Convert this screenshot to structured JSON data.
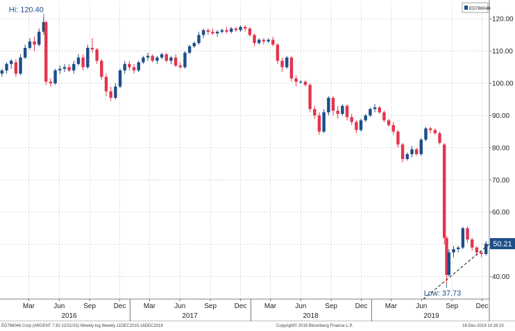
{
  "chart_data": {
    "type": "candlestick",
    "ticker_badge": "ED786046",
    "y_ticks": [
      40,
      50,
      60,
      70,
      80,
      90,
      100,
      110,
      120
    ],
    "y_tick_labels": [
      "40.00",
      "50.00",
      "60.00",
      "70.00",
      "80.00",
      "90.00",
      "100.00",
      "110.00",
      "120.00"
    ],
    "ylim": [
      33,
      125
    ],
    "grid": true,
    "colors": {
      "up": "#1d4e89",
      "down": "#e3344d",
      "last_badge": "#1d4e89",
      "annotation": "#1d4e89"
    },
    "month_ticks": [
      {
        "label": "Mar",
        "date": "2016-03-01"
      },
      {
        "label": "Jun",
        "date": "2016-06-01"
      },
      {
        "label": "Sep",
        "date": "2016-09-01"
      },
      {
        "label": "Dec",
        "date": "2016-12-01"
      },
      {
        "label": "Mar",
        "date": "2017-03-01"
      },
      {
        "label": "Jun",
        "date": "2017-06-01"
      },
      {
        "label": "Sep",
        "date": "2017-09-01"
      },
      {
        "label": "Dec",
        "date": "2017-12-01"
      },
      {
        "label": "Mar",
        "date": "2018-03-01"
      },
      {
        "label": "Jun",
        "date": "2018-06-01"
      },
      {
        "label": "Sep",
        "date": "2018-09-01"
      },
      {
        "label": "Dec",
        "date": "2018-12-01"
      },
      {
        "label": "Mar",
        "date": "2019-03-01"
      },
      {
        "label": "Jun",
        "date": "2019-06-01"
      },
      {
        "label": "Sep",
        "date": "2019-09-01"
      },
      {
        "label": "Dec",
        "date": "2019-12-01"
      }
    ],
    "year_labels": [
      {
        "label": "2016",
        "date": "2016-07-01"
      },
      {
        "label": "2017",
        "date": "2017-07-01"
      },
      {
        "label": "2018",
        "date": "2018-07-01"
      },
      {
        "label": "2019",
        "date": "2019-07-01"
      }
    ],
    "year_dividers": [
      "2017-01-01",
      "2018-01-01",
      "2019-01-01"
    ],
    "hi_annotation": {
      "label": "Hi: 120.40",
      "date": "2016-04-15",
      "value": 120.4
    },
    "low_annotation": {
      "label": "Low: 37.73",
      "date": "2019-08-16",
      "value": 37.73
    },
    "last_value": {
      "label": "50.21",
      "value": 50.21
    },
    "trend_line": {
      "start": {
        "date": "2019-06-07",
        "value": 33.0
      },
      "end": {
        "date": "2019-12-13",
        "value": 50.21
      }
    },
    "candles": [
      {
        "d": "2015-12-11",
        "o": 103.0,
        "h": 104.5,
        "l": 102.0,
        "c": 104.0
      },
      {
        "d": "2015-12-25",
        "o": 104.0,
        "h": 106.5,
        "l": 103.0,
        "c": 106.0
      },
      {
        "d": "2016-01-08",
        "o": 106.0,
        "h": 107.5,
        "l": 104.5,
        "c": 107.0
      },
      {
        "d": "2016-01-22",
        "o": 106.5,
        "h": 107.5,
        "l": 102.0,
        "c": 103.0
      },
      {
        "d": "2016-02-05",
        "o": 103.0,
        "h": 109.0,
        "l": 102.5,
        "c": 108.0
      },
      {
        "d": "2016-02-19",
        "o": 108.0,
        "h": 112.0,
        "l": 107.5,
        "c": 111.0
      },
      {
        "d": "2016-03-04",
        "o": 111.0,
        "h": 114.0,
        "l": 110.5,
        "c": 113.0
      },
      {
        "d": "2016-03-18",
        "o": 113.0,
        "h": 114.5,
        "l": 110.0,
        "c": 112.0
      },
      {
        "d": "2016-04-01",
        "o": 112.0,
        "h": 117.0,
        "l": 111.5,
        "c": 116.0
      },
      {
        "d": "2016-04-15",
        "o": 116.0,
        "h": 120.4,
        "l": 115.0,
        "c": 119.0
      },
      {
        "d": "2016-04-22",
        "o": 119.0,
        "h": 119.5,
        "l": 99.5,
        "c": 100.5
      },
      {
        "d": "2016-05-06",
        "o": 100.5,
        "h": 101.5,
        "l": 99.0,
        "c": 100.0
      },
      {
        "d": "2016-05-20",
        "o": 100.0,
        "h": 104.5,
        "l": 99.5,
        "c": 104.0
      },
      {
        "d": "2016-06-03",
        "o": 104.0,
        "h": 105.5,
        "l": 103.0,
        "c": 104.5
      },
      {
        "d": "2016-06-17",
        "o": 104.5,
        "h": 106.0,
        "l": 103.5,
        "c": 105.0
      },
      {
        "d": "2016-07-01",
        "o": 105.0,
        "h": 106.0,
        "l": 103.5,
        "c": 104.0
      },
      {
        "d": "2016-07-15",
        "o": 104.0,
        "h": 107.0,
        "l": 103.0,
        "c": 106.0
      },
      {
        "d": "2016-07-29",
        "o": 106.0,
        "h": 109.0,
        "l": 105.5,
        "c": 108.0
      },
      {
        "d": "2016-08-12",
        "o": 108.0,
        "h": 109.0,
        "l": 104.0,
        "c": 105.0
      },
      {
        "d": "2016-08-26",
        "o": 105.0,
        "h": 112.0,
        "l": 104.5,
        "c": 111.0
      },
      {
        "d": "2016-09-09",
        "o": 111.0,
        "h": 114.0,
        "l": 109.5,
        "c": 110.5
      },
      {
        "d": "2016-09-23",
        "o": 110.5,
        "h": 111.0,
        "l": 106.0,
        "c": 107.0
      },
      {
        "d": "2016-10-07",
        "o": 107.0,
        "h": 107.5,
        "l": 101.0,
        "c": 102.0
      },
      {
        "d": "2016-10-21",
        "o": 102.0,
        "h": 103.0,
        "l": 96.0,
        "c": 97.5
      },
      {
        "d": "2016-11-04",
        "o": 97.5,
        "h": 99.0,
        "l": 94.5,
        "c": 95.5
      },
      {
        "d": "2016-11-18",
        "o": 95.5,
        "h": 100.0,
        "l": 95.0,
        "c": 99.0
      },
      {
        "d": "2016-12-02",
        "o": 99.0,
        "h": 104.5,
        "l": 98.5,
        "c": 104.0
      },
      {
        "d": "2016-12-16",
        "o": 104.0,
        "h": 107.0,
        "l": 103.0,
        "c": 106.0
      },
      {
        "d": "2016-12-30",
        "o": 106.0,
        "h": 107.0,
        "l": 104.0,
        "c": 105.0
      },
      {
        "d": "2017-01-13",
        "o": 105.0,
        "h": 106.0,
        "l": 103.0,
        "c": 104.0
      },
      {
        "d": "2017-01-27",
        "o": 104.0,
        "h": 107.0,
        "l": 103.5,
        "c": 106.5
      },
      {
        "d": "2017-02-10",
        "o": 106.5,
        "h": 108.5,
        "l": 106.0,
        "c": 108.0
      },
      {
        "d": "2017-02-24",
        "o": 108.0,
        "h": 109.5,
        "l": 107.0,
        "c": 108.5
      },
      {
        "d": "2017-03-10",
        "o": 108.5,
        "h": 109.0,
        "l": 106.5,
        "c": 107.0
      },
      {
        "d": "2017-03-24",
        "o": 107.0,
        "h": 108.5,
        "l": 106.0,
        "c": 108.0
      },
      {
        "d": "2017-04-07",
        "o": 108.0,
        "h": 109.5,
        "l": 107.5,
        "c": 109.0
      },
      {
        "d": "2017-04-21",
        "o": 109.0,
        "h": 109.5,
        "l": 106.5,
        "c": 107.0
      },
      {
        "d": "2017-05-05",
        "o": 107.0,
        "h": 108.5,
        "l": 106.0,
        "c": 108.0
      },
      {
        "d": "2017-05-19",
        "o": 108.0,
        "h": 109.0,
        "l": 105.0,
        "c": 105.5
      },
      {
        "d": "2017-06-02",
        "o": 105.5,
        "h": 106.5,
        "l": 104.5,
        "c": 105.0
      },
      {
        "d": "2017-06-16",
        "o": 105.0,
        "h": 110.0,
        "l": 104.5,
        "c": 109.5
      },
      {
        "d": "2017-06-30",
        "o": 109.5,
        "h": 112.0,
        "l": 109.0,
        "c": 111.5
      },
      {
        "d": "2017-07-14",
        "o": 111.5,
        "h": 113.0,
        "l": 111.0,
        "c": 112.5
      },
      {
        "d": "2017-07-28",
        "o": 112.5,
        "h": 116.0,
        "l": 112.0,
        "c": 115.0
      },
      {
        "d": "2017-08-11",
        "o": 115.0,
        "h": 117.0,
        "l": 114.0,
        "c": 116.5
      },
      {
        "d": "2017-08-25",
        "o": 116.5,
        "h": 117.0,
        "l": 115.0,
        "c": 116.0
      },
      {
        "d": "2017-09-08",
        "o": 116.0,
        "h": 117.0,
        "l": 115.0,
        "c": 115.5
      },
      {
        "d": "2017-09-22",
        "o": 115.5,
        "h": 116.5,
        "l": 114.5,
        "c": 116.0
      },
      {
        "d": "2017-10-06",
        "o": 116.0,
        "h": 117.0,
        "l": 115.5,
        "c": 116.5
      },
      {
        "d": "2017-10-20",
        "o": 116.5,
        "h": 117.5,
        "l": 115.5,
        "c": 116.0
      },
      {
        "d": "2017-11-03",
        "o": 116.0,
        "h": 117.5,
        "l": 115.5,
        "c": 117.0
      },
      {
        "d": "2017-11-17",
        "o": 117.0,
        "h": 117.5,
        "l": 116.0,
        "c": 116.5
      },
      {
        "d": "2017-12-01",
        "o": 116.5,
        "h": 118.0,
        "l": 116.0,
        "c": 117.5
      },
      {
        "d": "2017-12-15",
        "o": 117.5,
        "h": 118.0,
        "l": 116.0,
        "c": 117.0
      },
      {
        "d": "2017-12-29",
        "o": 117.0,
        "h": 117.5,
        "l": 114.5,
        "c": 115.0
      },
      {
        "d": "2018-01-12",
        "o": 115.0,
        "h": 115.5,
        "l": 111.5,
        "c": 112.5
      },
      {
        "d": "2018-01-26",
        "o": 112.5,
        "h": 114.0,
        "l": 112.0,
        "c": 113.5
      },
      {
        "d": "2018-02-09",
        "o": 113.5,
        "h": 114.0,
        "l": 112.0,
        "c": 113.0
      },
      {
        "d": "2018-02-23",
        "o": 113.0,
        "h": 114.0,
        "l": 112.5,
        "c": 113.5
      },
      {
        "d": "2018-03-09",
        "o": 113.5,
        "h": 114.5,
        "l": 111.5,
        "c": 112.0
      },
      {
        "d": "2018-03-23",
        "o": 112.0,
        "h": 112.5,
        "l": 106.0,
        "c": 107.0
      },
      {
        "d": "2018-04-06",
        "o": 107.0,
        "h": 108.0,
        "l": 103.5,
        "c": 105.0
      },
      {
        "d": "2018-04-20",
        "o": 105.0,
        "h": 108.5,
        "l": 104.5,
        "c": 108.0
      },
      {
        "d": "2018-05-04",
        "o": 108.0,
        "h": 108.5,
        "l": 100.5,
        "c": 101.5
      },
      {
        "d": "2018-05-18",
        "o": 101.5,
        "h": 102.5,
        "l": 99.0,
        "c": 100.5
      },
      {
        "d": "2018-06-01",
        "o": 100.5,
        "h": 101.0,
        "l": 100.0,
        "c": 100.5
      },
      {
        "d": "2018-06-15",
        "o": 100.5,
        "h": 101.0,
        "l": 99.0,
        "c": 99.5
      },
      {
        "d": "2018-06-29",
        "o": 99.5,
        "h": 100.0,
        "l": 91.0,
        "c": 92.0
      },
      {
        "d": "2018-07-13",
        "o": 92.0,
        "h": 93.0,
        "l": 89.0,
        "c": 90.0
      },
      {
        "d": "2018-07-27",
        "o": 90.0,
        "h": 91.0,
        "l": 84.0,
        "c": 85.0
      },
      {
        "d": "2018-08-10",
        "o": 85.0,
        "h": 92.0,
        "l": 84.5,
        "c": 91.0
      },
      {
        "d": "2018-08-24",
        "o": 91.0,
        "h": 96.0,
        "l": 90.0,
        "c": 95.5
      },
      {
        "d": "2018-09-07",
        "o": 95.5,
        "h": 96.0,
        "l": 90.0,
        "c": 91.5
      },
      {
        "d": "2018-09-21",
        "o": 91.5,
        "h": 93.0,
        "l": 89.0,
        "c": 90.5
      },
      {
        "d": "2018-10-05",
        "o": 90.5,
        "h": 93.5,
        "l": 90.0,
        "c": 93.0
      },
      {
        "d": "2018-10-19",
        "o": 93.0,
        "h": 93.5,
        "l": 88.5,
        "c": 89.5
      },
      {
        "d": "2018-11-02",
        "o": 89.5,
        "h": 90.5,
        "l": 87.0,
        "c": 88.0
      },
      {
        "d": "2018-11-16",
        "o": 88.0,
        "h": 88.5,
        "l": 84.5,
        "c": 85.5
      },
      {
        "d": "2018-11-30",
        "o": 85.5,
        "h": 89.0,
        "l": 85.0,
        "c": 88.5
      },
      {
        "d": "2018-12-14",
        "o": 88.5,
        "h": 90.5,
        "l": 88.0,
        "c": 90.0
      },
      {
        "d": "2018-12-28",
        "o": 90.0,
        "h": 92.5,
        "l": 89.5,
        "c": 92.0
      },
      {
        "d": "2019-01-11",
        "o": 92.0,
        "h": 93.5,
        "l": 91.0,
        "c": 92.5
      },
      {
        "d": "2019-01-25",
        "o": 92.5,
        "h": 93.0,
        "l": 90.5,
        "c": 91.0
      },
      {
        "d": "2019-02-08",
        "o": 91.0,
        "h": 91.5,
        "l": 88.0,
        "c": 88.5
      },
      {
        "d": "2019-02-22",
        "o": 88.5,
        "h": 89.0,
        "l": 86.5,
        "c": 87.0
      },
      {
        "d": "2019-03-08",
        "o": 87.0,
        "h": 88.0,
        "l": 84.0,
        "c": 85.0
      },
      {
        "d": "2019-03-22",
        "o": 85.0,
        "h": 85.5,
        "l": 80.0,
        "c": 81.0
      },
      {
        "d": "2019-04-05",
        "o": 81.0,
        "h": 81.5,
        "l": 75.5,
        "c": 76.5
      },
      {
        "d": "2019-04-19",
        "o": 76.5,
        "h": 78.5,
        "l": 76.0,
        "c": 78.0
      },
      {
        "d": "2019-05-03",
        "o": 78.0,
        "h": 80.5,
        "l": 77.0,
        "c": 79.5
      },
      {
        "d": "2019-05-17",
        "o": 79.5,
        "h": 80.0,
        "l": 77.5,
        "c": 78.0
      },
      {
        "d": "2019-05-31",
        "o": 78.0,
        "h": 83.0,
        "l": 77.5,
        "c": 82.5
      },
      {
        "d": "2019-06-14",
        "o": 82.5,
        "h": 86.5,
        "l": 82.0,
        "c": 86.0
      },
      {
        "d": "2019-06-28",
        "o": 86.0,
        "h": 86.5,
        "l": 84.5,
        "c": 85.5
      },
      {
        "d": "2019-07-12",
        "o": 85.5,
        "h": 86.0,
        "l": 84.0,
        "c": 84.5
      },
      {
        "d": "2019-07-26",
        "o": 84.5,
        "h": 85.0,
        "l": 81.0,
        "c": 81.5
      },
      {
        "d": "2019-08-09",
        "o": 81.0,
        "h": 81.5,
        "l": 50.0,
        "c": 52.0
      },
      {
        "d": "2019-08-16",
        "o": 52.0,
        "h": 52.5,
        "l": 37.73,
        "c": 40.5
      },
      {
        "d": "2019-08-23",
        "o": 40.5,
        "h": 48.5,
        "l": 40.0,
        "c": 47.5
      },
      {
        "d": "2019-09-06",
        "o": 47.5,
        "h": 49.5,
        "l": 46.0,
        "c": 48.5
      },
      {
        "d": "2019-09-20",
        "o": 48.5,
        "h": 49.5,
        "l": 47.5,
        "c": 49.0
      },
      {
        "d": "2019-10-04",
        "o": 49.0,
        "h": 55.5,
        "l": 48.5,
        "c": 55.0
      },
      {
        "d": "2019-10-18",
        "o": 55.0,
        "h": 55.5,
        "l": 50.5,
        "c": 51.5
      },
      {
        "d": "2019-11-01",
        "o": 51.5,
        "h": 52.0,
        "l": 48.0,
        "c": 49.0
      },
      {
        "d": "2019-11-15",
        "o": 49.0,
        "h": 49.5,
        "l": 46.5,
        "c": 47.5
      },
      {
        "d": "2019-11-29",
        "o": 47.5,
        "h": 48.0,
        "l": 46.0,
        "c": 47.0
      },
      {
        "d": "2019-12-13",
        "o": 47.0,
        "h": 51.0,
        "l": 46.5,
        "c": 50.21
      }
    ]
  },
  "footer": {
    "left": "ED786046 Corp (ARGENT 7.82 12/31/33) Weekly log Weekly 11DEC2015-16DEC2019",
    "center": "Copyright© 2019 Bloomberg Finance L.P.",
    "right": "16-Dec-2019 10:28:23"
  }
}
